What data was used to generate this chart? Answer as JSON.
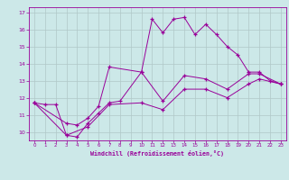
{
  "xlabel": "Windchill (Refroidissement éolien,°C)",
  "bg_color": "#cce8e8",
  "line_color": "#990099",
  "grid_color": "#b0c8c8",
  "xlim": [
    -0.5,
    23.5
  ],
  "ylim": [
    9.5,
    17.3
  ],
  "xticks": [
    0,
    1,
    2,
    3,
    4,
    5,
    6,
    7,
    8,
    9,
    10,
    11,
    12,
    13,
    14,
    15,
    16,
    17,
    18,
    19,
    20,
    21,
    22,
    23
  ],
  "yticks": [
    10,
    11,
    12,
    13,
    14,
    15,
    16,
    17
  ],
  "series1_x": [
    0,
    1,
    2,
    3,
    4,
    5,
    6,
    7,
    8,
    10,
    11,
    12,
    13,
    14,
    15,
    16,
    17,
    18,
    19,
    20,
    21,
    22,
    23
  ],
  "series1_y": [
    11.7,
    11.6,
    11.6,
    9.8,
    9.7,
    10.5,
    11.1,
    11.7,
    11.8,
    13.5,
    16.6,
    15.8,
    16.6,
    16.7,
    15.7,
    16.3,
    15.7,
    15.0,
    14.5,
    13.5,
    13.5,
    13.0,
    12.8
  ],
  "series2_x": [
    0,
    3,
    4,
    5,
    6,
    7,
    10,
    12,
    14,
    16,
    18,
    20,
    21,
    23
  ],
  "series2_y": [
    11.7,
    10.5,
    10.4,
    10.8,
    11.5,
    13.8,
    13.5,
    11.8,
    13.3,
    13.1,
    12.5,
    13.4,
    13.4,
    12.8
  ],
  "series3_x": [
    0,
    3,
    5,
    7,
    10,
    12,
    14,
    16,
    18,
    20,
    21,
    23
  ],
  "series3_y": [
    11.7,
    9.8,
    10.3,
    11.6,
    11.7,
    11.3,
    12.5,
    12.5,
    12.0,
    12.8,
    13.1,
    12.8
  ]
}
